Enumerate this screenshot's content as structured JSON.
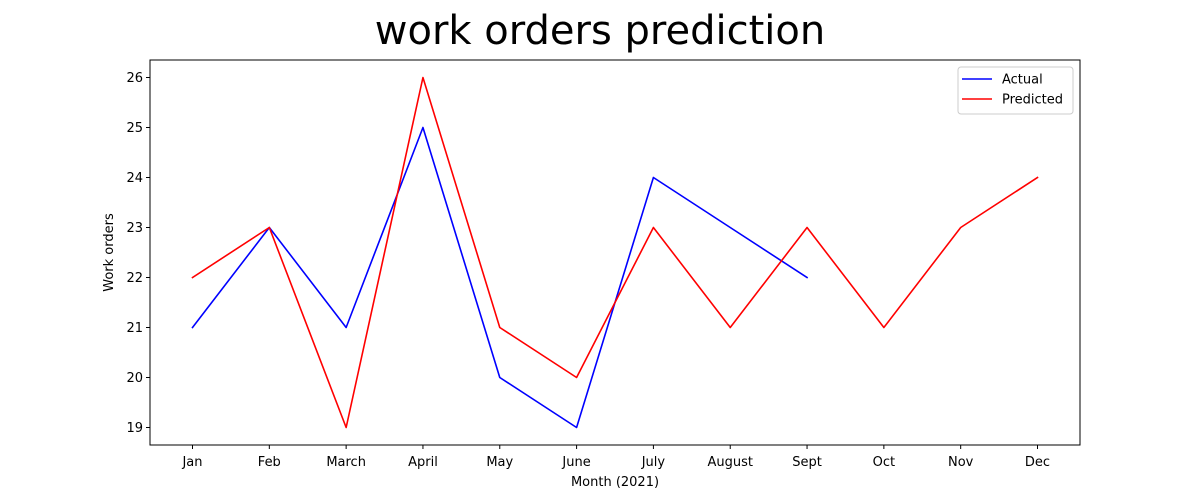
{
  "chart_data": {
    "type": "line",
    "title": "work orders prediction",
    "xlabel": "Month (2021)",
    "ylabel": "Work orders",
    "categories": [
      "Jan",
      "Feb",
      "March",
      "April",
      "May",
      "June",
      "July",
      "August",
      "Sept",
      "Oct",
      "Nov",
      "Dec"
    ],
    "yticks": [
      19,
      20,
      21,
      22,
      23,
      24,
      25,
      26
    ],
    "ylim": [
      18.65,
      26.35
    ],
    "grid": false,
    "legend_position": "top-right",
    "series": [
      {
        "name": "Actual",
        "color": "#0000ff",
        "values": [
          21,
          23,
          21,
          25,
          20,
          19,
          24,
          23,
          22,
          null,
          null,
          null
        ]
      },
      {
        "name": "Predicted",
        "color": "#ff0000",
        "values": [
          22,
          23,
          19,
          26,
          21,
          20,
          23,
          21,
          23,
          21,
          23,
          24
        ]
      }
    ]
  }
}
